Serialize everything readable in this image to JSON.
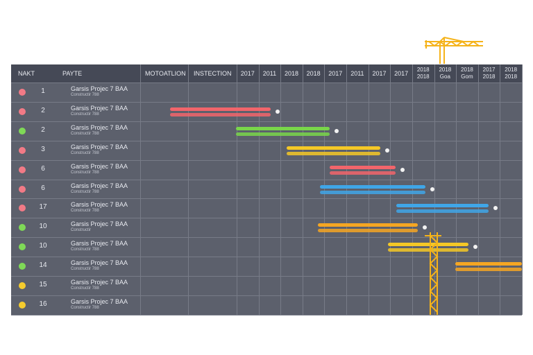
{
  "header": {
    "col_name": "NAKT",
    "col_phase": "PAYTE",
    "col_motion": "MOTOATLION",
    "col_inspection": "INSTECTION",
    "timeline": [
      "2017",
      "2011",
      "2018",
      "2018",
      "2017",
      "2011",
      "2017",
      "2017",
      "2018 2018",
      "2018 Goa",
      "2018 Gom",
      "2017 2018",
      "2018 2018"
    ]
  },
  "rows": [
    {
      "num": "1",
      "title": "Garsis Projec 7 BAA",
      "sub": "Constructir 788",
      "status": "#f27a86"
    },
    {
      "num": "2",
      "title": "Garsis Projec 7 BAA",
      "sub": "Constructir 788",
      "status": "#f27a86"
    },
    {
      "num": "2",
      "title": "Garsis Projec 7 BAA",
      "sub": "Constructir 788",
      "status": "#7fd957"
    },
    {
      "num": "3",
      "title": "Garsis Projec 7 BAA",
      "sub": "Constructir 788",
      "status": "#f27a86"
    },
    {
      "num": "6",
      "title": "Garsis Projec 7 BAA",
      "sub": "Constructir 788",
      "status": "#f27a86"
    },
    {
      "num": "6",
      "title": "Garsis Projec 7 BAA",
      "sub": "Constructir 788",
      "status": "#f27a86"
    },
    {
      "num": "17",
      "title": "Garsis Projec 7 BAA",
      "sub": "Constructir 788",
      "status": "#f27a86"
    },
    {
      "num": "10",
      "title": "Garsis Projec 7 BAA",
      "sub": "Constructir",
      "status": "#7fd957"
    },
    {
      "num": "10",
      "title": "Garsis Projec 7 BAA",
      "sub": "Constructir 788",
      "status": "#7fd957"
    },
    {
      "num": "14",
      "title": "Garsis Projec 7 BAA",
      "sub": "Constructir 788",
      "status": "#7fd957"
    },
    {
      "num": "15",
      "title": "Garsis Projec 7 BAA",
      "sub": "Constructir 788",
      "status": "#f5cc2e"
    },
    {
      "num": "16",
      "title": "Garsis Projec 7 BAA",
      "sub": "Constructir 788",
      "status": "#f5cc2e"
    }
  ],
  "bars": [
    {
      "row": 1,
      "color": "#f2656b",
      "endpoint": true
    },
    {
      "row": 2,
      "color": "#79d64a",
      "endpoint": true
    },
    {
      "row": 3,
      "color": "#f5c826",
      "endpoint": true
    },
    {
      "row": 4,
      "color": "#f2656b",
      "endpoint": true
    },
    {
      "row": 5,
      "color": "#3fa6e8",
      "endpoint": true
    },
    {
      "row": 6,
      "color": "#3fa6e8",
      "endpoint": true
    },
    {
      "row": 7,
      "color": "#f5a623",
      "endpoint": true
    },
    {
      "row": 8,
      "color": "#f5c826",
      "endpoint": true
    },
    {
      "row": 9,
      "color": "#f5a623",
      "endpoint": false
    }
  ]
}
